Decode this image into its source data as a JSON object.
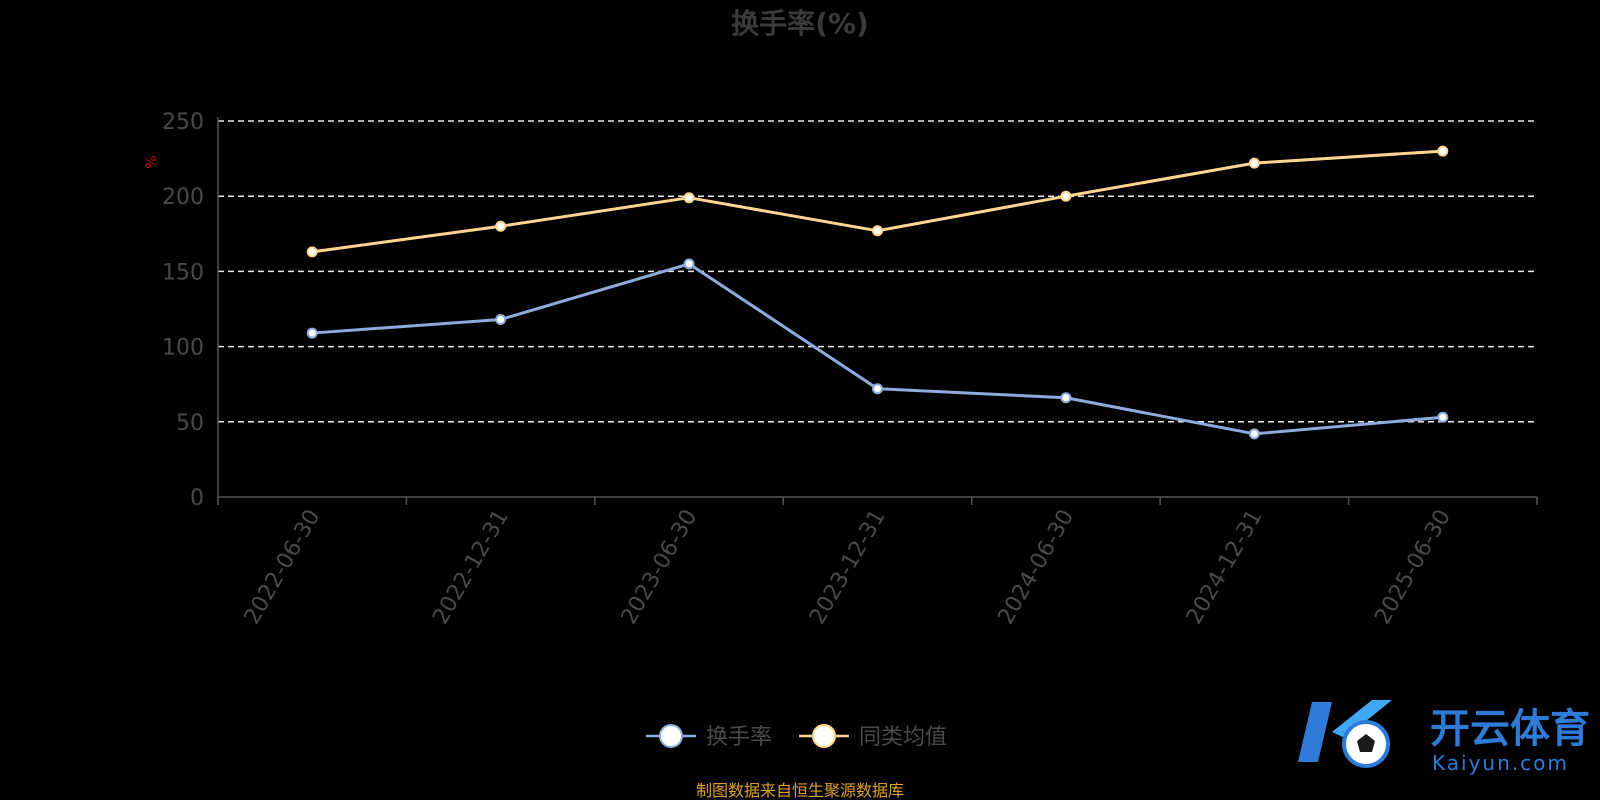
{
  "chart_data": {
    "type": "line",
    "title": "换手率(%)",
    "ylabel": "%",
    "categories": [
      "2022-06-30",
      "2022-12-31",
      "2023-06-30",
      "2023-12-31",
      "2024-06-30",
      "2024-12-31",
      "2025-06-30"
    ],
    "ylim": [
      0,
      250
    ],
    "yticks": [
      0,
      50,
      100,
      150,
      200,
      250
    ],
    "grid": true,
    "legend_position": "bottom-center",
    "series": [
      {
        "name": "换手率",
        "color": "#8faadc",
        "values": [
          109,
          118,
          155,
          72,
          66,
          42,
          53
        ]
      },
      {
        "name": "同类均值",
        "color": "#ffd591",
        "values": [
          163,
          180,
          199,
          177,
          200,
          222,
          230
        ]
      }
    ]
  },
  "source_note": "制图数据来自恒生聚源数据库",
  "logo": {
    "cn": "开云体育",
    "en": "Kaiyun.com"
  }
}
